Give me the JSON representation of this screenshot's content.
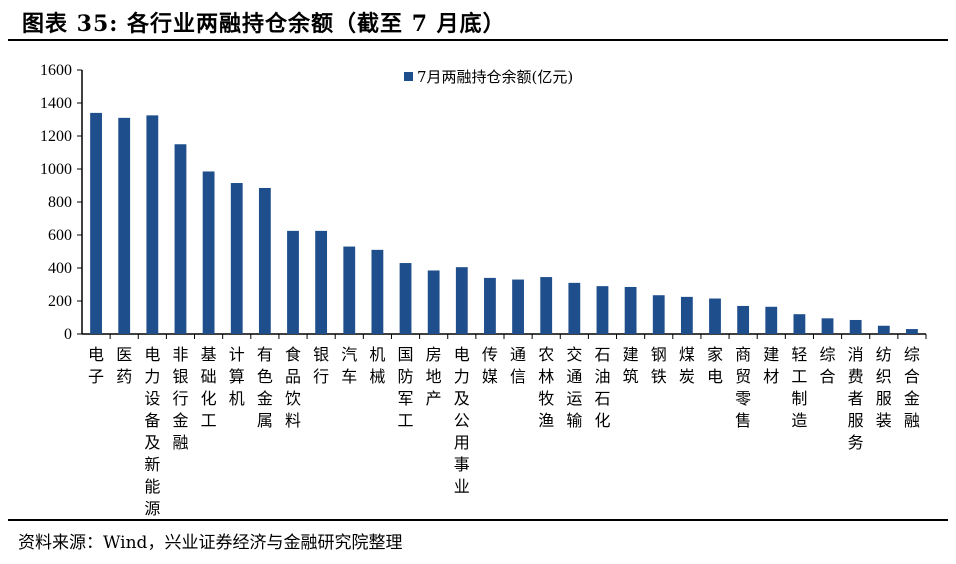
{
  "title": "图表 35: 各行业两融持仓余额（截至 7 月底）",
  "source": "资料来源：Wind，兴业证券经济与金融研究院整理",
  "chart_data": {
    "type": "bar",
    "categories": [
      "电子",
      "医药",
      "电力设备及新能源",
      "非银行金融",
      "基础化工",
      "计算机",
      "有色金属",
      "食品饮料",
      "银行",
      "汽车",
      "机械",
      "国防军工",
      "房地产",
      "电力及公用事业",
      "传媒",
      "通信",
      "农林牧渔",
      "交通运输",
      "石油石化",
      "建筑",
      "钢铁",
      "煤炭",
      "家电",
      "商贸零售",
      "建材",
      "轻工制造",
      "综合",
      "消费者服务",
      "纺织服装",
      "综合金融"
    ],
    "series": [
      {
        "name": "7月两融持仓余额(亿元)",
        "color": "#1f4e8c",
        "values": [
          1340,
          1310,
          1325,
          1150,
          985,
          915,
          885,
          625,
          625,
          530,
          510,
          430,
          385,
          405,
          340,
          330,
          345,
          310,
          290,
          285,
          235,
          225,
          215,
          170,
          165,
          120,
          95,
          85,
          50,
          30
        ]
      }
    ],
    "ylim": [
      0,
      1600
    ],
    "yticks": [
      0,
      200,
      400,
      600,
      800,
      1000,
      1200,
      1400,
      1600
    ],
    "legend_position": "top-right",
    "grid": false
  }
}
